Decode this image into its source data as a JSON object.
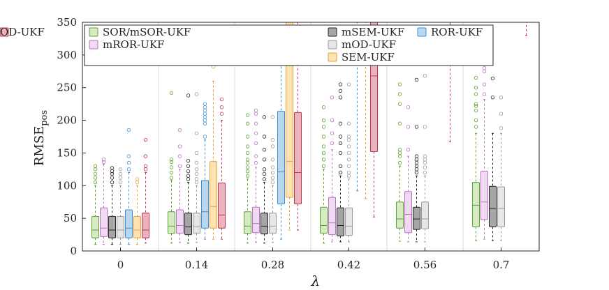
{
  "chart_data": {
    "type": "boxplot",
    "title": "",
    "xlabel": "λ",
    "ylabel": "RMSE",
    "ylabel_subscript": "pos",
    "ylim": [
      0,
      350
    ],
    "yticks": [
      0,
      50,
      100,
      150,
      200,
      250,
      300,
      350
    ],
    "categories": [
      "0",
      "0.14",
      "0.28",
      "0.42",
      "0.56",
      "0.7"
    ],
    "legend_placement": "top-left, 3 rows x 4 columns",
    "series": [
      {
        "name": "SOR/mSOR-UKF",
        "color": "#5aa02c",
        "fill": "#d6ebc3",
        "stats": [
          {
            "min": 10,
            "q1": 20,
            "median": 32,
            "q3": 53,
            "max": 100,
            "outliers": [
              105,
              112,
              118,
              125,
              130
            ]
          },
          {
            "min": 12,
            "q1": 27,
            "median": 38,
            "q3": 60,
            "max": 108,
            "outliers": [
              112,
              120,
              128,
              136,
              140,
              242
            ]
          },
          {
            "min": 12,
            "q1": 27,
            "median": 38,
            "q3": 60,
            "max": 110,
            "outliers": [
              115,
              122,
              128,
              135,
              140,
              150,
              160,
              175,
              195,
              208
            ]
          },
          {
            "min": 12,
            "q1": 27,
            "median": 39,
            "q3": 67,
            "max": 125,
            "outliers": [
              130,
              140,
              150,
              160,
              175,
              190,
              200,
              220
            ]
          },
          {
            "min": 15,
            "q1": 35,
            "median": 49,
            "q3": 75,
            "max": 130,
            "outliers": [
              135,
              145,
              150,
              155,
              195,
              225,
              240,
              255
            ]
          },
          {
            "min": 16,
            "q1": 37,
            "median": 70,
            "q3": 105,
            "max": 180,
            "outliers": [
              190,
              200,
              215,
              222,
              225,
              240,
              250,
              265
            ]
          }
        ]
      },
      {
        "name": "mROR-UKF",
        "color": "#c06ec6",
        "fill": "#f0daf2",
        "stats": [
          {
            "min": 10,
            "q1": 22,
            "median": 35,
            "q3": 66,
            "max": 133,
            "outliers": [
              136,
              140
            ]
          },
          {
            "min": 13,
            "q1": 27,
            "median": 39,
            "q3": 63,
            "max": 125,
            "outliers": [
              130,
              145,
              160,
              185
            ]
          },
          {
            "min": 13,
            "q1": 28,
            "median": 42,
            "q3": 67,
            "max": 128,
            "outliers": [
              135,
              145,
              165,
              180,
              195,
              210,
              215
            ]
          },
          {
            "min": 14,
            "q1": 25,
            "median": 43,
            "q3": 82,
            "max": 155,
            "outliers": [
              165,
              180,
              200,
              235
            ]
          },
          {
            "min": 14,
            "q1": 28,
            "median": 56,
            "q3": 91,
            "max": 145,
            "outliers": [
              155,
              190,
              220
            ]
          },
          {
            "min": 18,
            "q1": 48,
            "median": 75,
            "q3": 122,
            "max": 232,
            "outliers": [
              240,
              255,
              275,
              280
            ]
          }
        ]
      },
      {
        "name": "mSEM-UKF",
        "color": "#222222",
        "fill": "#a6a6a6",
        "stats": [
          {
            "min": 10,
            "q1": 20,
            "median": 32,
            "q3": 53,
            "max": 100,
            "outliers": [
              105,
              112,
              118,
              122,
              127
            ]
          },
          {
            "min": 12,
            "q1": 25,
            "median": 37,
            "q3": 58,
            "max": 105,
            "outliers": [
              110,
              115,
              122,
              130,
              138,
              238
            ]
          },
          {
            "min": 12,
            "q1": 26,
            "median": 38,
            "q3": 58,
            "max": 105,
            "outliers": [
              110,
              118,
              125,
              140,
              155,
              175,
              205
            ]
          },
          {
            "min": 14,
            "q1": 23,
            "median": 39,
            "q3": 66,
            "max": 115,
            "outliers": [
              120,
              130,
              150,
              165,
              175,
              195,
              235,
              245,
              255
            ]
          },
          {
            "min": 14,
            "q1": 33,
            "median": 49,
            "q3": 67,
            "max": 115,
            "outliers": [
              120,
              125,
              130,
              135,
              140,
              145,
              190,
              262
            ]
          },
          {
            "min": 16,
            "q1": 37,
            "median": 65,
            "q3": 99,
            "max": 180,
            "outliers": [
              235,
              264
            ]
          }
        ]
      },
      {
        "name": "mOD-UKF",
        "color": "#9a9a9a",
        "fill": "#e6e6e6",
        "stats": [
          {
            "min": 10,
            "q1": 20,
            "median": 32,
            "q3": 53,
            "max": 100,
            "outliers": [
              105,
              112,
              118,
              125
            ]
          },
          {
            "min": 13,
            "q1": 27,
            "median": 37,
            "q3": 58,
            "max": 100,
            "outliers": [
              105,
              110,
              118,
              125,
              135,
              150,
              180,
              240
            ]
          },
          {
            "min": 13,
            "q1": 27,
            "median": 38,
            "q3": 58,
            "max": 100,
            "outliers": [
              105,
              112,
              120,
              128,
              140,
              160,
              170,
              205
            ]
          },
          {
            "min": 14,
            "q1": 24,
            "median": 38,
            "q3": 66,
            "max": 110,
            "outliers": [
              115,
              120,
              130,
              140,
              150,
              160,
              170,
              175,
              195,
              255
            ]
          },
          {
            "min": 14,
            "q1": 34,
            "median": 49,
            "q3": 75,
            "max": 115,
            "outliers": [
              120,
              128,
              135,
              140,
              145,
              190,
              268
            ]
          },
          {
            "min": 16,
            "q1": 37,
            "median": 65,
            "q3": 98,
            "max": 180,
            "outliers": [
              188,
              210,
              235
            ]
          }
        ]
      },
      {
        "name": "ROR-UKF",
        "color": "#3f8fd2",
        "fill": "#b9d8f0",
        "stats": [
          {
            "min": 10,
            "q1": 20,
            "median": 35,
            "q3": 63,
            "max": 120,
            "outliers": [
              125,
              135,
              145,
              185
            ]
          },
          {
            "min": 18,
            "q1": 35,
            "median": 60,
            "q3": 108,
            "max": 170,
            "outliers": [
              175,
              195,
              200,
              205,
              210,
              215,
              220,
              225
            ]
          },
          {
            "min": 18,
            "q1": 72,
            "median": 121,
            "q3": 214,
            "max": 340,
            "outliers": []
          },
          {
            "min": 92,
            "q1": null,
            "median": null,
            "q3": null,
            "max": 350,
            "outliers": []
          },
          {
            "min": null,
            "q1": null,
            "median": null,
            "q3": null,
            "max": null,
            "outliers": []
          },
          {
            "min": null,
            "q1": null,
            "median": null,
            "q3": null,
            "max": null,
            "outliers": []
          }
        ]
      },
      {
        "name": "SEM-UKF",
        "color": "#e8a33a",
        "fill": "#fbe3b3",
        "stats": [
          {
            "min": 10,
            "q1": 20,
            "median": 32,
            "q3": 53,
            "max": 100,
            "outliers": [
              105,
              110
            ]
          },
          {
            "min": 18,
            "q1": 35,
            "median": 68,
            "q3": 137,
            "max": 260,
            "outliers": [
              282
            ]
          },
          {
            "min": 32,
            "q1": 82,
            "median": 137,
            "q3": 350,
            "max": 350,
            "outliers": []
          },
          {
            "min": 80,
            "q1": null,
            "median": null,
            "q3": null,
            "max": 350,
            "outliers": []
          },
          {
            "min": null,
            "q1": null,
            "median": null,
            "q3": null,
            "max": null,
            "outliers": []
          },
          {
            "min": null,
            "q1": null,
            "median": null,
            "q3": null,
            "max": null,
            "outliers": []
          }
        ]
      },
      {
        "name": "OD-UKF",
        "color": "#c03552",
        "fill": "#eab3bd",
        "stats": [
          {
            "min": 12,
            "q1": 20,
            "median": 32,
            "q3": 58,
            "max": 120,
            "outliers": [
              125,
              130,
              145,
              170
            ]
          },
          {
            "min": 18,
            "q1": 35,
            "median": 55,
            "q3": 104,
            "max": 200,
            "outliers": [
              210,
              220,
              232
            ]
          },
          {
            "min": 32,
            "q1": 72,
            "median": 120,
            "q3": 212,
            "max": 350,
            "outliers": []
          },
          {
            "min": 52,
            "q1": 152,
            "median": 268,
            "q3": 350,
            "max": 350,
            "outliers": []
          },
          {
            "min": 167,
            "q1": null,
            "median": null,
            "q3": null,
            "max": 350,
            "outliers": []
          },
          {
            "min": 330,
            "q1": null,
            "median": null,
            "q3": null,
            "max": 350,
            "outliers": []
          }
        ]
      }
    ]
  }
}
